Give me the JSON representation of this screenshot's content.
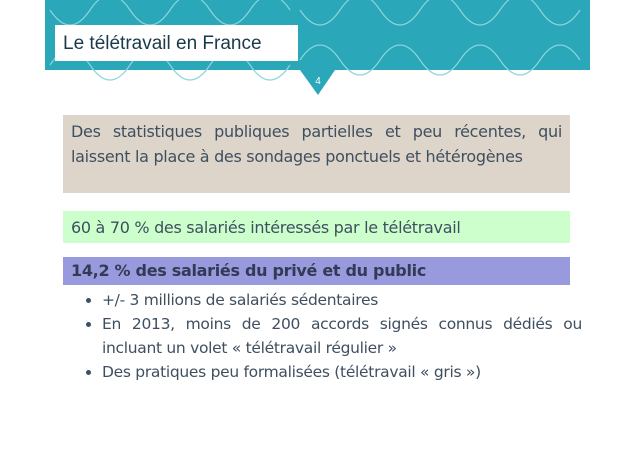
{
  "header": {
    "title": "Le télétravail en France",
    "page_number": "4"
  },
  "blocks": [
    {
      "text": "Des statistiques publiques partielles et peu récentes, qui laissent la place à des sondages ponctuels et hétérogènes"
    },
    {
      "text": "60 à 70 % des salariés intéressés par le télétravail"
    },
    {
      "text": "14,2 % des salariés du privé et du public"
    }
  ],
  "bullets": [
    "+/- 3 millions de salariés sédentaires",
    "En 2013, moins de 200 accords signés connus dédiés ou incluant un volet « télétravail régulier »",
    "Des pratiques peu formalisées (télétravail « gris »)"
  ]
}
